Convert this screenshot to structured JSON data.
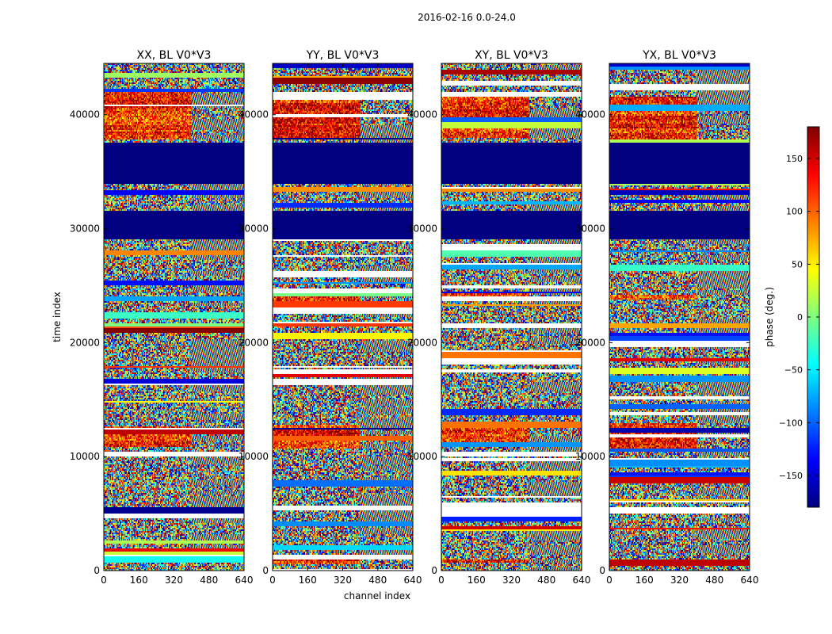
{
  "chart_data": {
    "type": "heatmap",
    "suptitle": "2016-02-16 0.0-24.0",
    "panels": [
      {
        "title": "XX, BL V0*V3",
        "baseline": "V0*V3",
        "polarization": "XX",
        "seed": 11
      },
      {
        "title": "YY, BL V0*V3",
        "baseline": "V0*V3",
        "polarization": "YY",
        "seed": 23
      },
      {
        "title": "XY, BL V0*V3",
        "baseline": "V0*V3",
        "polarization": "XY",
        "seed": 37
      },
      {
        "title": "YX, BL V0*V3",
        "baseline": "V0*V3",
        "polarization": "YX",
        "seed": 51
      }
    ],
    "xlabel": "channel index",
    "ylabel": "time index",
    "xlim": [
      0,
      640
    ],
    "ylim": [
      0,
      44500
    ],
    "xticks": [
      0,
      160,
      320,
      480,
      640
    ],
    "xtick_labels": [
      "0",
      "160",
      "320",
      "480",
      "640"
    ],
    "yticks": [
      0,
      10000,
      20000,
      30000,
      40000
    ],
    "ytick_labels": [
      "0",
      "10000",
      "20000",
      "30000",
      "40000"
    ],
    "colorbar": {
      "label": "phase (deg.)",
      "colormap": "jet",
      "vmin": -180,
      "vmax": 180,
      "ticks": [
        -150,
        -100,
        -50,
        0,
        50,
        100,
        150
      ],
      "tick_labels": [
        "−150",
        "−100",
        "−50",
        "0",
        "50",
        "100",
        "150"
      ],
      "colors": [
        "#00007f",
        "#0000ff",
        "#007fff",
        "#00ffff",
        "#7fff7f",
        "#ffff00",
        "#ff7f00",
        "#ff0000",
        "#7f0000"
      ]
    },
    "flagged_time_ranges": [
      [
        29000,
        31500
      ],
      [
        34000,
        37500
      ]
    ],
    "flagged_value": -180,
    "split_channel": 400,
    "hot_time_ranges": [
      [
        38000,
        42000
      ],
      [
        11000,
        13000
      ],
      [
        23800,
        24400
      ],
      [
        700,
        1200
      ]
    ]
  }
}
